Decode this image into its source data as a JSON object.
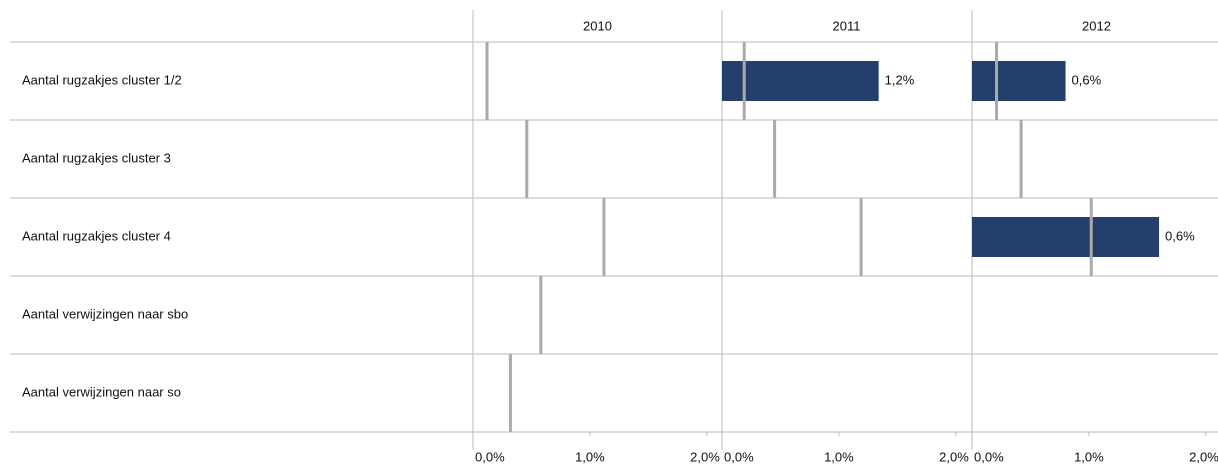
{
  "chart_data": {
    "type": "bar",
    "orientation": "horizontal",
    "categories": [
      "Aantal rugzakjes cluster 1/2",
      "Aantal rugzakjes cluster 3",
      "Aantal rugzakjes cluster 4",
      "Aantal verwijzingen naar sbo",
      "Aantal verwijzingen naar so"
    ],
    "xlim": [
      0,
      2.13
    ],
    "xticks": [
      {
        "value": 0,
        "label": "0,0%"
      },
      {
        "value": 1,
        "label": "1,0%"
      },
      {
        "value": 2,
        "label": "2,0%"
      }
    ],
    "bar_color": "#243f6b",
    "reference_color": "#aaaaaa",
    "panels": [
      {
        "title": "2010",
        "values": [
          null,
          null,
          null,
          null,
          null
        ],
        "reference": [
          0.12,
          0.46,
          1.12,
          0.58,
          0.32
        ],
        "annotations": [
          null,
          null,
          null,
          null,
          null
        ]
      },
      {
        "title": "2011",
        "values": [
          1.34,
          null,
          null,
          null,
          null
        ],
        "reference": [
          0.19,
          0.45,
          1.19,
          null,
          null
        ],
        "annotations": [
          "1,2%",
          null,
          null,
          null,
          null
        ]
      },
      {
        "title": "2012",
        "values": [
          0.8,
          null,
          1.6,
          null,
          null
        ],
        "reference": [
          0.21,
          0.42,
          1.02,
          null,
          null
        ],
        "annotations": [
          "0,6%",
          null,
          "0,6%",
          null,
          null
        ]
      }
    ]
  }
}
